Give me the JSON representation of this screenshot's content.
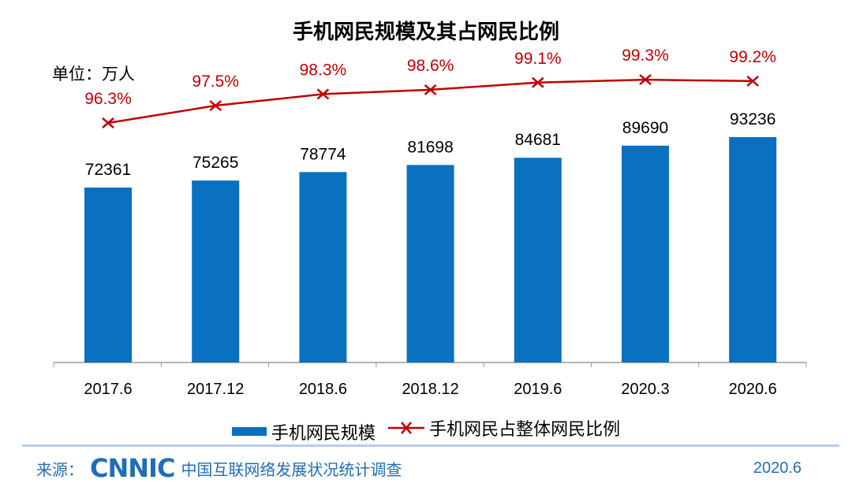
{
  "chart_data": {
    "type": "bar+line",
    "title": "手机网民规模及其占网民比例",
    "unit_label": "单位：万人",
    "categories": [
      "2017.6",
      "2017.12",
      "2018.6",
      "2018.12",
      "2019.6",
      "2020.3",
      "2020.6"
    ],
    "series": [
      {
        "name": "手机网民规模",
        "type": "bar",
        "color": "#0a70c0",
        "values": [
          72361,
          75265,
          78774,
          81698,
          84681,
          89690,
          93236
        ]
      },
      {
        "name": "手机网民占整体网民比例",
        "type": "line",
        "color": "#c00000",
        "marker": "x",
        "values": [
          96.3,
          97.5,
          98.3,
          98.6,
          99.1,
          99.3,
          99.2
        ],
        "labels": [
          "96.3%",
          "97.5%",
          "98.3%",
          "98.6%",
          "99.1%",
          "99.3%",
          "99.2%"
        ]
      }
    ],
    "legend": "bottom",
    "grid": false
  },
  "footer": {
    "source_label": "来源：",
    "logo": "CNNIC",
    "source_text": "中国互联网络发展状况统计调查",
    "date": "2020.6"
  }
}
